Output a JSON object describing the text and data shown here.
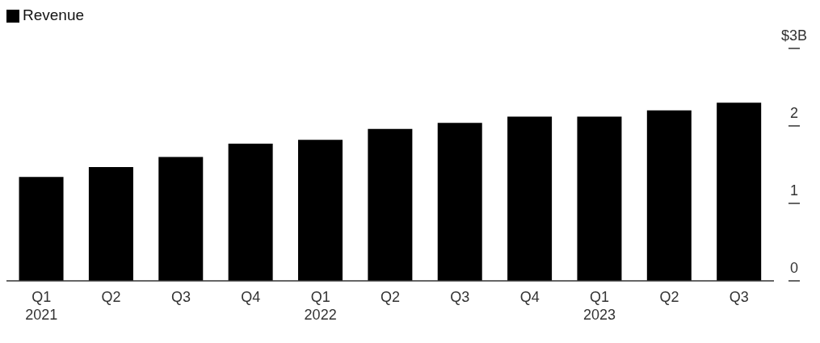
{
  "chart_data": {
    "type": "bar",
    "categories": [
      "Q1\n2021",
      "Q2",
      "Q3",
      "Q4",
      "Q1\n2022",
      "Q2",
      "Q3",
      "Q4",
      "Q1\n2023",
      "Q2",
      "Q3"
    ],
    "series": [
      {
        "name": "Revenue",
        "color": "#000000",
        "values": [
          1.34,
          1.47,
          1.6,
          1.77,
          1.82,
          1.96,
          2.04,
          2.12,
          2.12,
          2.2,
          2.3
        ]
      }
    ],
    "ylim": [
      0,
      3
    ],
    "yticks": [
      0,
      1,
      2,
      {
        "value": 3,
        "label": "$3B"
      }
    ],
    "grid": false,
    "legend": "top left"
  }
}
